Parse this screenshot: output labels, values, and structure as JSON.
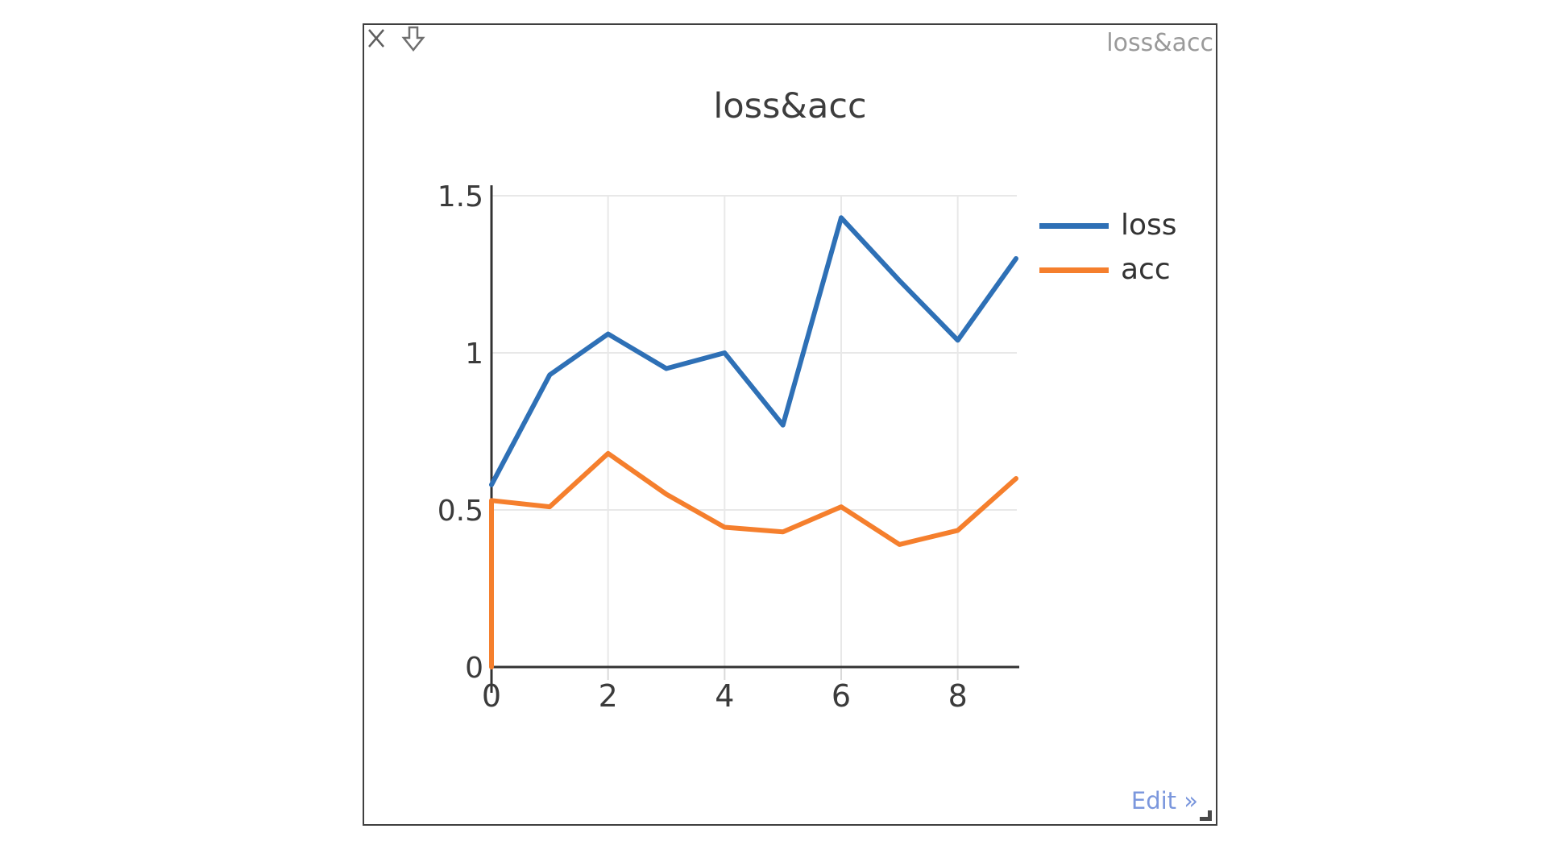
{
  "window": {
    "corner_title": "loss&acc",
    "edit_link": "Edit »"
  },
  "chart_data": {
    "type": "line",
    "title": "loss&acc",
    "x": [
      0,
      1,
      2,
      3,
      4,
      5,
      6,
      7,
      8,
      9
    ],
    "series": [
      {
        "name": "loss",
        "color": "#2e70b6",
        "values": [
          0.58,
          0.93,
          1.06,
          0.95,
          1.0,
          0.77,
          1.43,
          1.23,
          1.04,
          1.3
        ]
      },
      {
        "name": "acc",
        "color": "#f57f2d",
        "values": [
          0.53,
          0.51,
          0.68,
          0.55,
          0.445,
          0.43,
          0.51,
          0.39,
          0.435,
          0.6
        ],
        "drops_to_zero_at_start": true
      }
    ],
    "xlim": [
      0,
      9
    ],
    "ylim": [
      0,
      1.5
    ],
    "xticks": [
      0,
      2,
      4,
      6,
      8
    ],
    "yticks": [
      0,
      0.5,
      1,
      1.5
    ],
    "grid": true,
    "legend_position": "right-top",
    "xlabel": "",
    "ylabel": ""
  },
  "colors": {
    "axis": "#333333",
    "grid": "#e8e8e8",
    "tick": "#d9d9d9",
    "tick_label": "#3b3b3b",
    "title": "#3d3d3d",
    "corner_title": "#9a9a9a",
    "edit_link": "#7b97dd",
    "icon": "#5f5f5f",
    "window_border": "#3f3f3f"
  }
}
